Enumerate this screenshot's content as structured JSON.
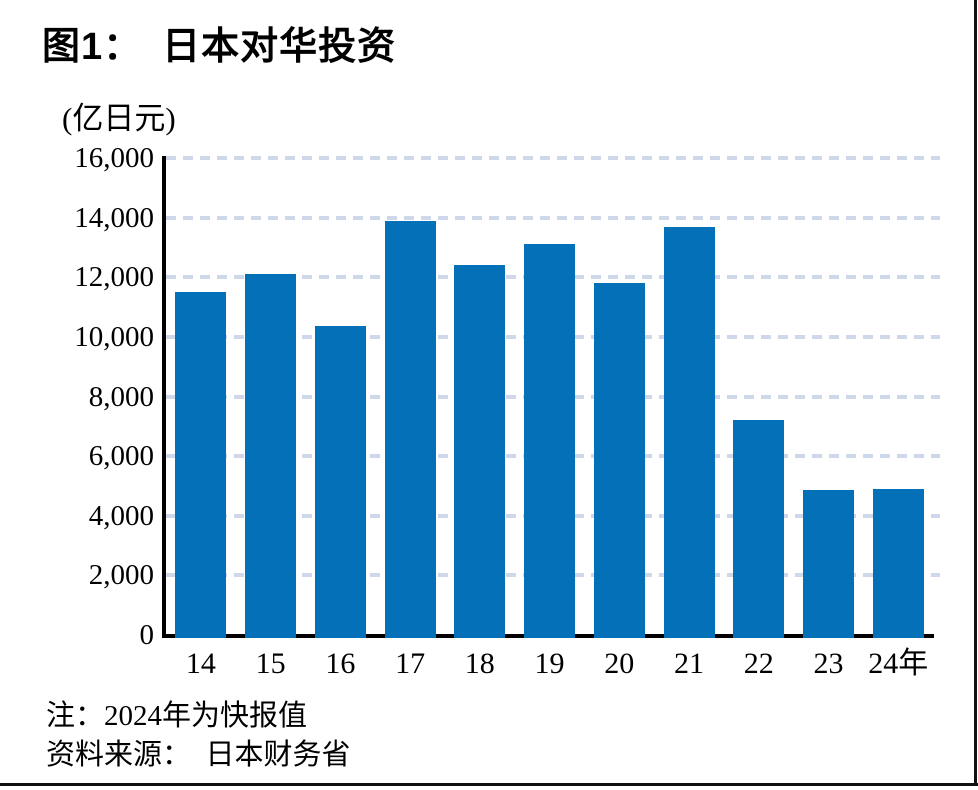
{
  "title": "图1：　日本对华投资",
  "unit": "(亿日元)",
  "note": "注：2024年为快报值",
  "source": "资料来源：　日本财务省",
  "colors": {
    "bar": "#0470B8",
    "gridline": "#CFD8EA",
    "axis": "#000000",
    "border": "#111111"
  },
  "chart_data": {
    "type": "bar",
    "title": "图1：日本对华投资",
    "categories": [
      "14",
      "15",
      "16",
      "17",
      "18",
      "19",
      "20",
      "21",
      "22",
      "23",
      "24"
    ],
    "x_unit_suffix": "年",
    "values": [
      11500,
      12100,
      10350,
      13900,
      12400,
      13100,
      11800,
      13700,
      7200,
      4850,
      4900
    ],
    "xlabel": "年",
    "ylabel": "亿日元",
    "ylim": [
      0,
      16000
    ],
    "y_ticks": [
      0,
      2000,
      4000,
      6000,
      8000,
      10000,
      12000,
      14000,
      16000
    ],
    "grid": "horizontal-dashed",
    "legend_position": "none",
    "note": "注：2024年为快报值",
    "source": "资料来源：日本财务省"
  }
}
